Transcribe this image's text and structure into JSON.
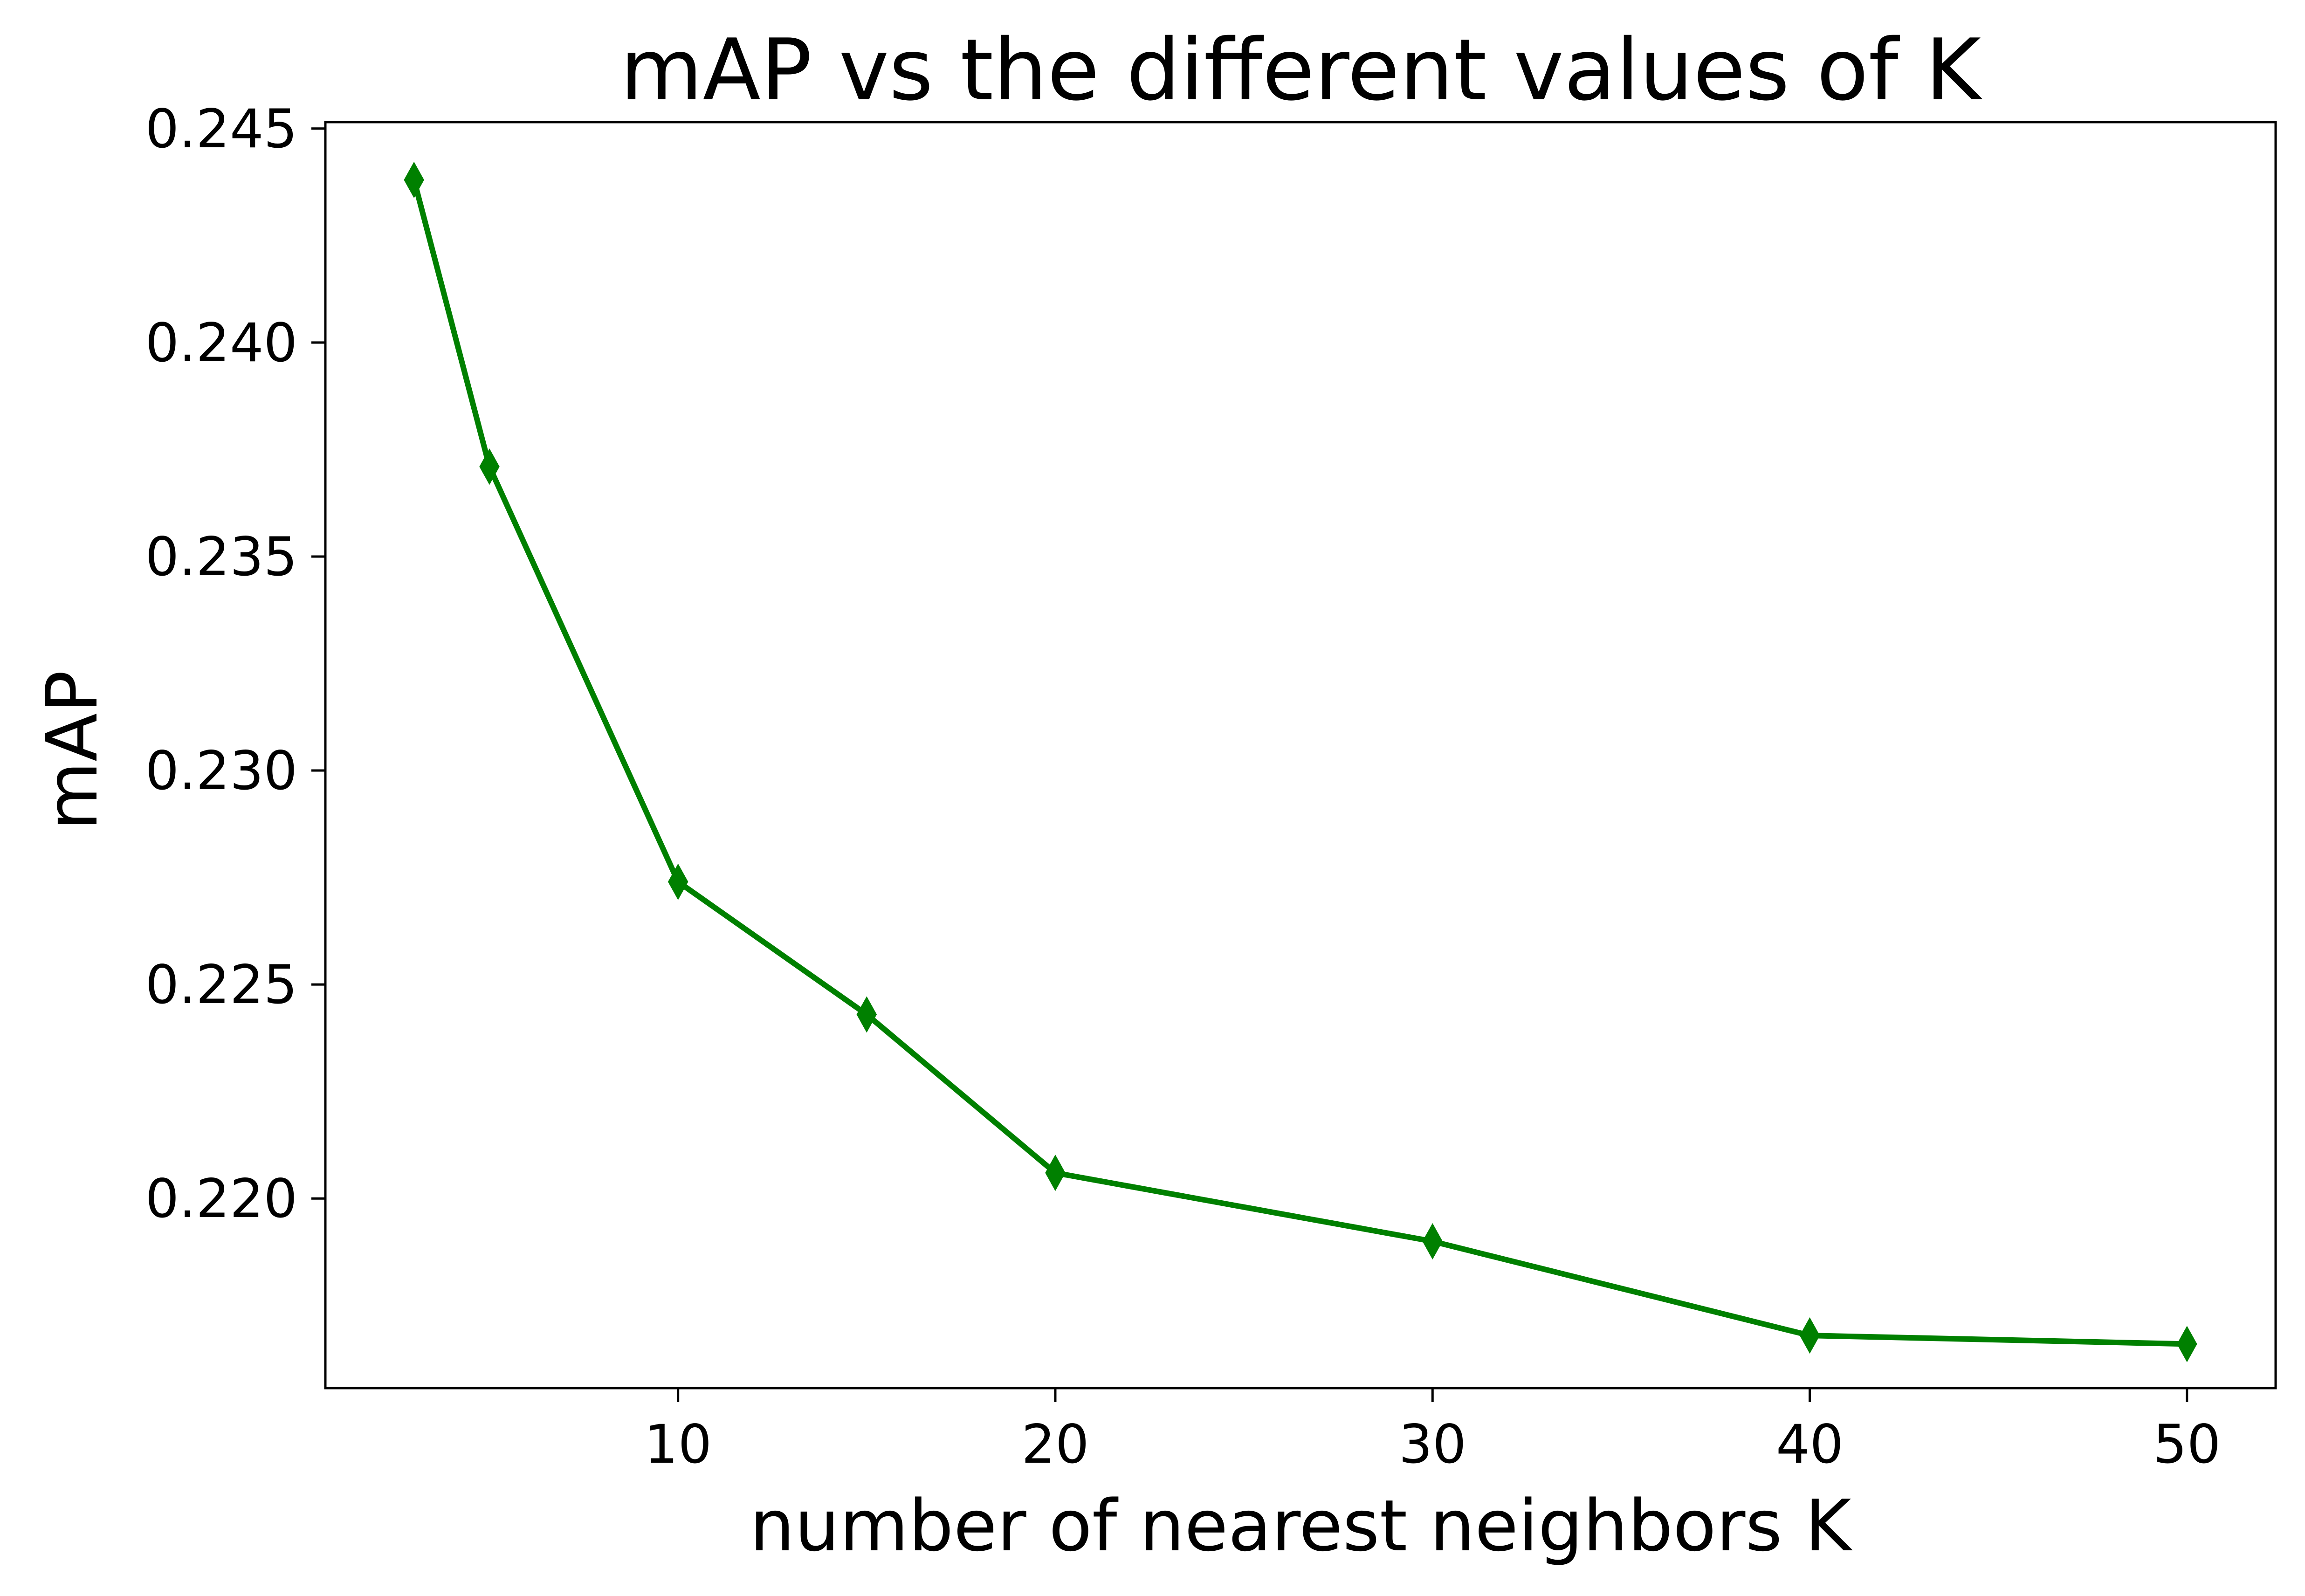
{
  "chart_data": {
    "type": "line",
    "title": "mAP vs the different values of K",
    "xlabel": "number of nearest neighbors K",
    "ylabel": "mAP",
    "x": [
      3,
      5,
      10,
      15,
      20,
      30,
      40,
      50
    ],
    "series": [
      {
        "values": [
          0.2438,
          0.2371,
          0.2274,
          0.2243,
          0.2206,
          0.219,
          0.2168,
          0.2166
        ],
        "color": "#008000",
        "marker": "thin-diamond"
      }
    ],
    "xticks": [
      10,
      20,
      30,
      40,
      50
    ],
    "xtick_labels": [
      "10",
      "20",
      "30",
      "40",
      "50"
    ],
    "yticks": [
      0.22,
      0.225,
      0.23,
      0.235,
      0.24,
      0.245
    ],
    "ytick_labels": [
      "0.220",
      "0.225",
      "0.230",
      "0.235",
      "0.240",
      "0.245"
    ],
    "xlim": [
      0.65,
      52.35
    ],
    "ylim": [
      0.21557,
      0.24515
    ],
    "grid": false,
    "legend": "none"
  }
}
